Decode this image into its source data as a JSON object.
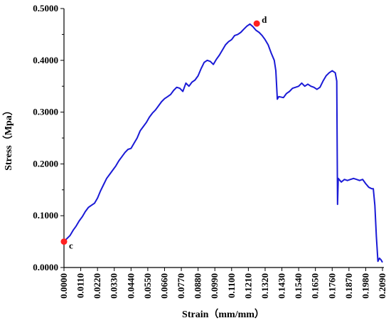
{
  "chart_data": {
    "type": "line",
    "xlabel": "Strain（mm/mm）",
    "ylabel": "Stress（Mpa）",
    "xlim": [
      0,
      0.209
    ],
    "ylim": [
      0,
      0.5
    ],
    "x_ticks": [
      "0.0000",
      "0.0110",
      "0.0220",
      "0.0330",
      "0.0440",
      "0.0550",
      "0.0660",
      "0.0770",
      "0.0880",
      "0.0990",
      "0.1100",
      "0.1210",
      "0.1320",
      "0.1430",
      "0.1540",
      "0.1650",
      "0.1760",
      "0.1870",
      "0.1980",
      "0.2090"
    ],
    "y_ticks": [
      "0.0000",
      "0.1000",
      "0.2000",
      "0.3000",
      "0.4000",
      "0.5000"
    ],
    "grid": false,
    "line_color": "#1a1ad6",
    "marker_color": "#ff2020",
    "series": [
      {
        "points": [
          [
            0.0,
            0.05
          ],
          [
            0.002,
            0.056
          ],
          [
            0.004,
            0.062
          ],
          [
            0.006,
            0.072
          ],
          [
            0.008,
            0.08
          ],
          [
            0.01,
            0.09
          ],
          [
            0.012,
            0.098
          ],
          [
            0.014,
            0.108
          ],
          [
            0.016,
            0.116
          ],
          [
            0.018,
            0.12
          ],
          [
            0.02,
            0.124
          ],
          [
            0.022,
            0.134
          ],
          [
            0.024,
            0.148
          ],
          [
            0.026,
            0.16
          ],
          [
            0.028,
            0.172
          ],
          [
            0.03,
            0.18
          ],
          [
            0.032,
            0.188
          ],
          [
            0.034,
            0.196
          ],
          [
            0.036,
            0.206
          ],
          [
            0.038,
            0.214
          ],
          [
            0.04,
            0.222
          ],
          [
            0.042,
            0.228
          ],
          [
            0.044,
            0.23
          ],
          [
            0.046,
            0.24
          ],
          [
            0.048,
            0.25
          ],
          [
            0.05,
            0.264
          ],
          [
            0.052,
            0.272
          ],
          [
            0.054,
            0.28
          ],
          [
            0.056,
            0.29
          ],
          [
            0.058,
            0.298
          ],
          [
            0.06,
            0.304
          ],
          [
            0.062,
            0.312
          ],
          [
            0.064,
            0.32
          ],
          [
            0.066,
            0.326
          ],
          [
            0.068,
            0.33
          ],
          [
            0.07,
            0.334
          ],
          [
            0.072,
            0.342
          ],
          [
            0.074,
            0.348
          ],
          [
            0.076,
            0.346
          ],
          [
            0.078,
            0.34
          ],
          [
            0.08,
            0.356
          ],
          [
            0.082,
            0.35
          ],
          [
            0.084,
            0.358
          ],
          [
            0.086,
            0.362
          ],
          [
            0.088,
            0.37
          ],
          [
            0.09,
            0.384
          ],
          [
            0.092,
            0.396
          ],
          [
            0.094,
            0.4
          ],
          [
            0.096,
            0.398
          ],
          [
            0.098,
            0.392
          ],
          [
            0.1,
            0.402
          ],
          [
            0.102,
            0.41
          ],
          [
            0.104,
            0.42
          ],
          [
            0.106,
            0.43
          ],
          [
            0.108,
            0.436
          ],
          [
            0.11,
            0.44
          ],
          [
            0.112,
            0.448
          ],
          [
            0.114,
            0.45
          ],
          [
            0.116,
            0.454
          ],
          [
            0.118,
            0.46
          ],
          [
            0.12,
            0.466
          ],
          [
            0.122,
            0.47
          ],
          [
            0.124,
            0.465
          ],
          [
            0.126,
            0.458
          ],
          [
            0.128,
            0.454
          ],
          [
            0.13,
            0.448
          ],
          [
            0.132,
            0.44
          ],
          [
            0.134,
            0.43
          ],
          [
            0.136,
            0.414
          ],
          [
            0.138,
            0.4
          ],
          [
            0.139,
            0.38
          ],
          [
            0.14,
            0.325
          ],
          [
            0.141,
            0.33
          ],
          [
            0.144,
            0.328
          ],
          [
            0.146,
            0.336
          ],
          [
            0.148,
            0.34
          ],
          [
            0.15,
            0.346
          ],
          [
            0.152,
            0.348
          ],
          [
            0.154,
            0.35
          ],
          [
            0.156,
            0.356
          ],
          [
            0.158,
            0.35
          ],
          [
            0.16,
            0.354
          ],
          [
            0.162,
            0.35
          ],
          [
            0.164,
            0.348
          ],
          [
            0.166,
            0.344
          ],
          [
            0.168,
            0.348
          ],
          [
            0.17,
            0.36
          ],
          [
            0.172,
            0.37
          ],
          [
            0.174,
            0.376
          ],
          [
            0.176,
            0.38
          ],
          [
            0.178,
            0.376
          ],
          [
            0.179,
            0.36
          ],
          [
            0.1795,
            0.122
          ],
          [
            0.18,
            0.172
          ],
          [
            0.182,
            0.165
          ],
          [
            0.184,
            0.17
          ],
          [
            0.186,
            0.168
          ],
          [
            0.188,
            0.17
          ],
          [
            0.19,
            0.172
          ],
          [
            0.192,
            0.17
          ],
          [
            0.194,
            0.168
          ],
          [
            0.196,
            0.17
          ],
          [
            0.198,
            0.162
          ],
          [
            0.2,
            0.155
          ],
          [
            0.202,
            0.152
          ],
          [
            0.203,
            0.152
          ],
          [
            0.204,
            0.12
          ],
          [
            0.205,
            0.06
          ],
          [
            0.206,
            0.012
          ],
          [
            0.207,
            0.018
          ],
          [
            0.208,
            0.015
          ],
          [
            0.209,
            0.01
          ]
        ]
      }
    ],
    "annotations": [
      {
        "label": "c",
        "x": 0.0,
        "y": 0.05
      },
      {
        "label": "d",
        "x": 0.1265,
        "y": 0.471
      }
    ]
  }
}
